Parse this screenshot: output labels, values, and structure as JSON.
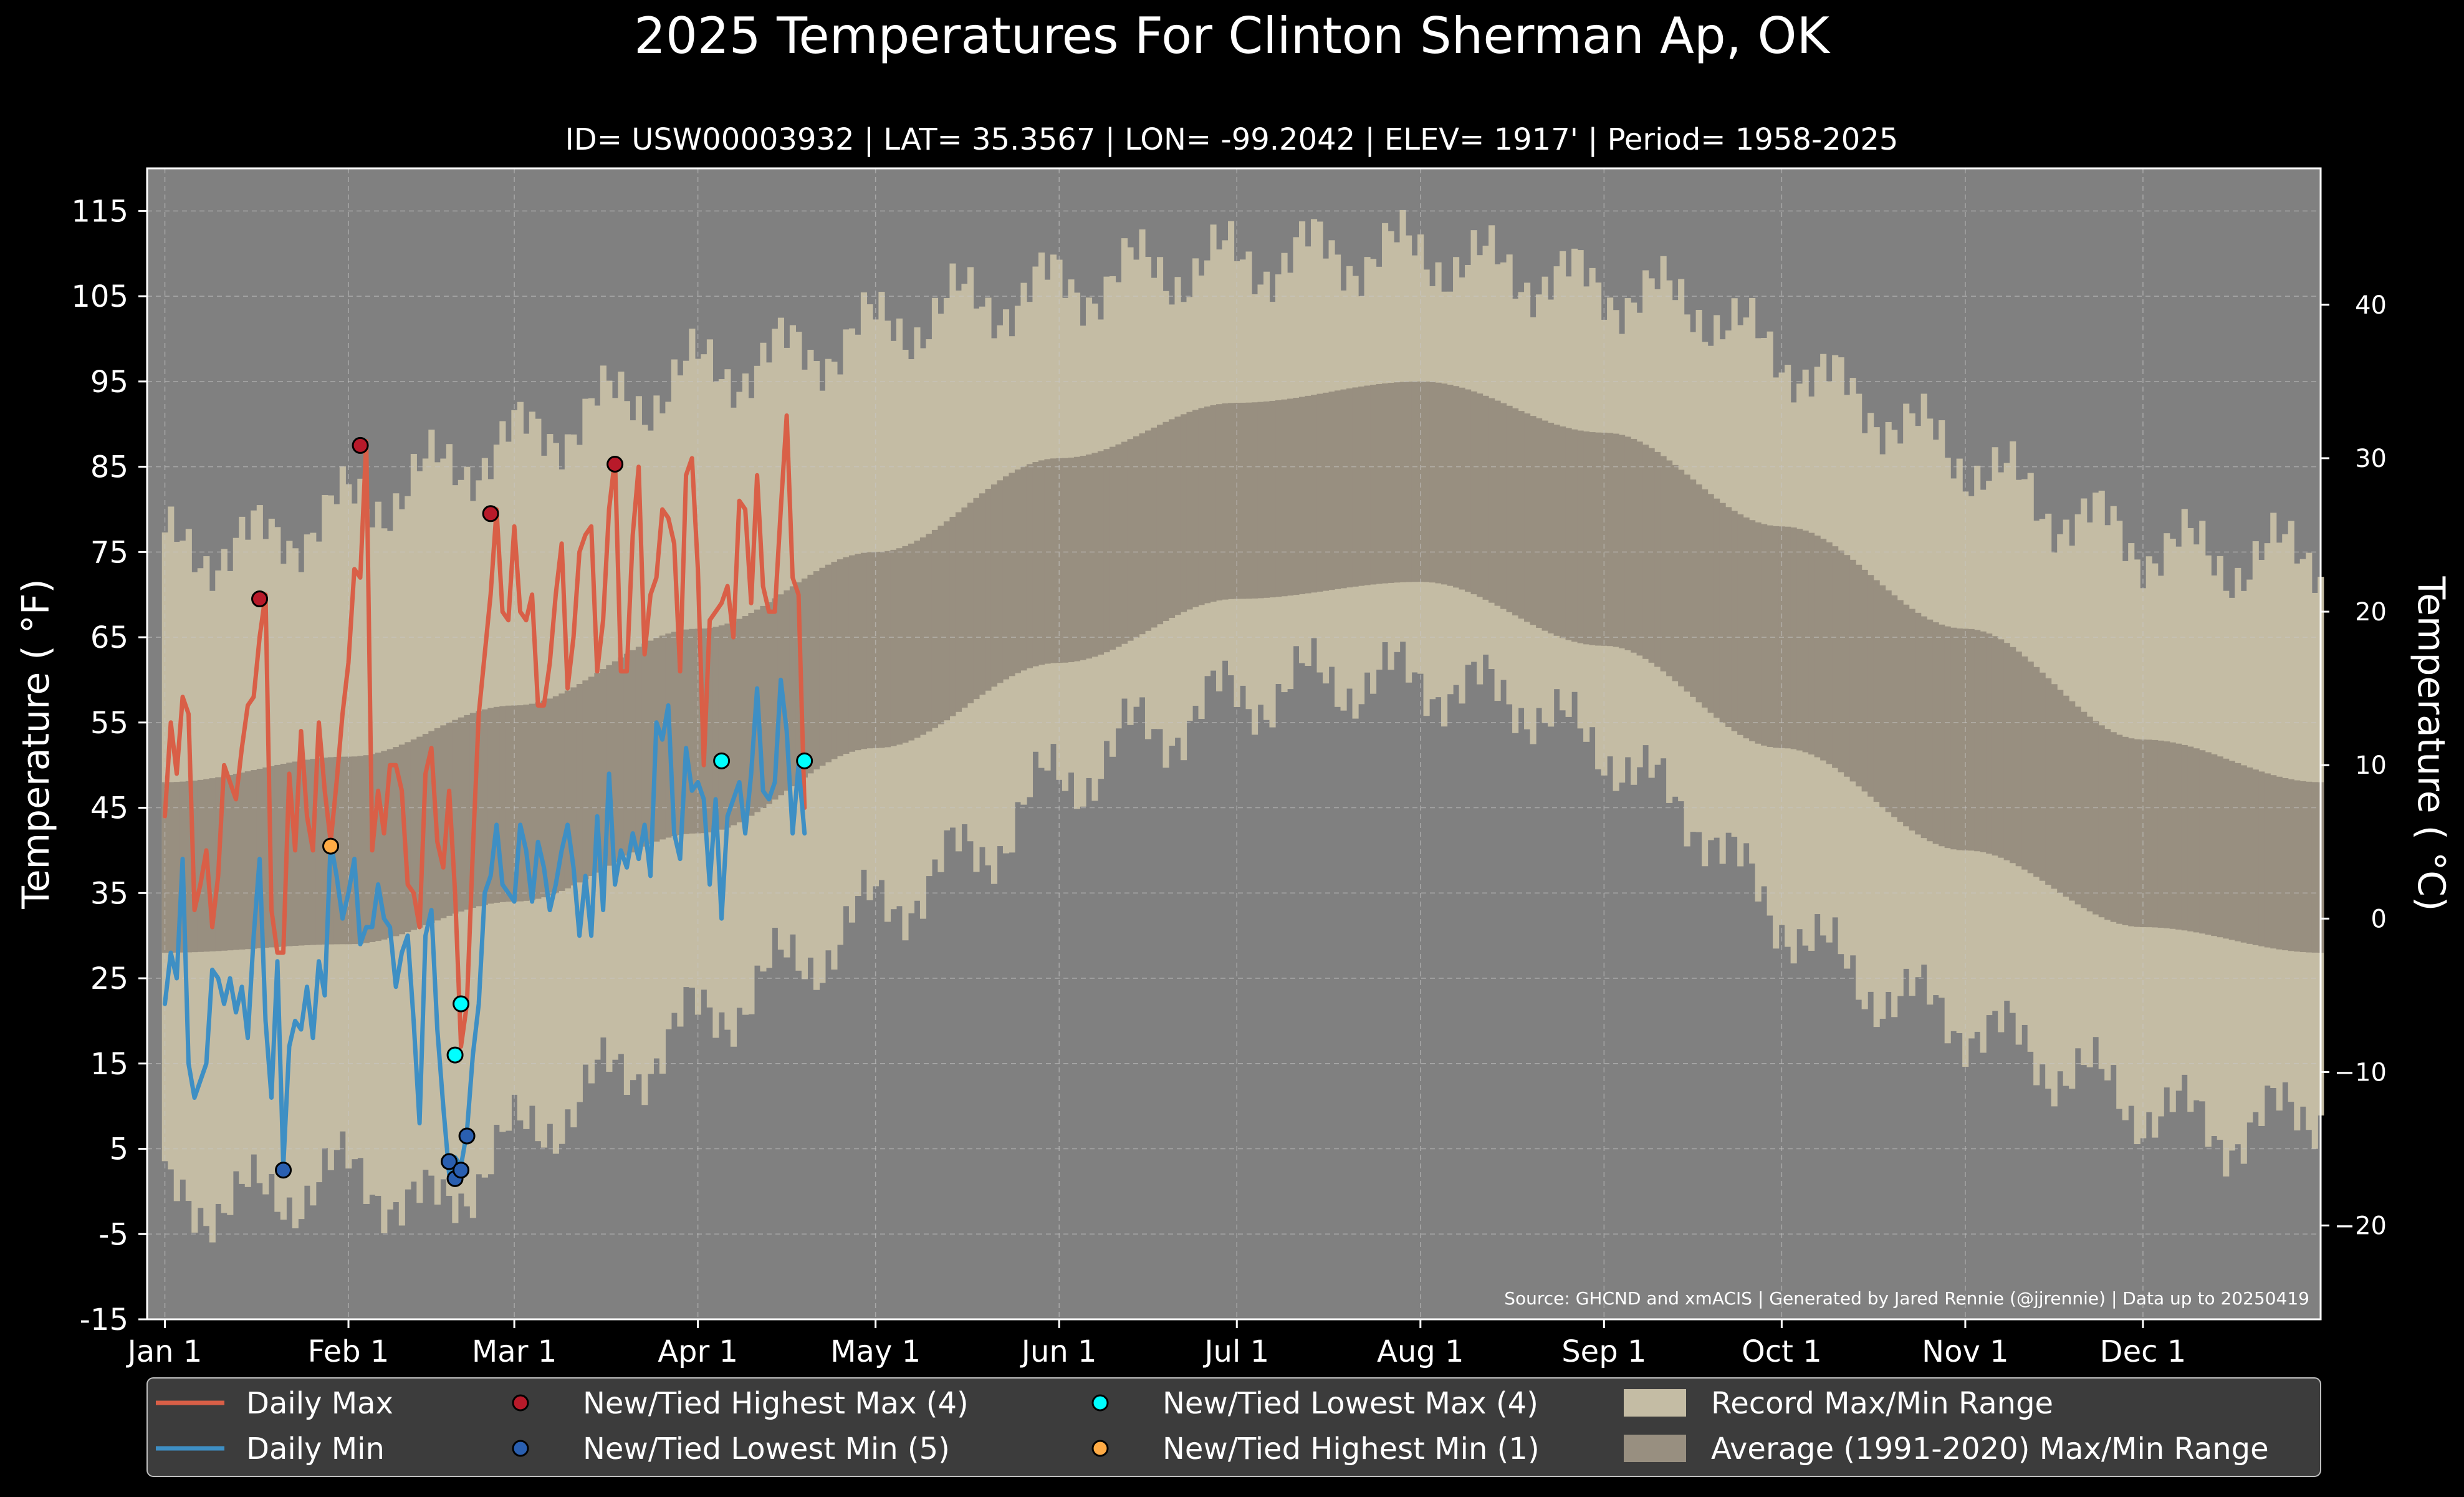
{
  "chart_data": {
    "type": "line",
    "title": "2025 Temperatures For Clinton Sherman Ap, OK",
    "subtitle": "ID= USW00003932 | LAT= 35.3567 | LON= -99.2042 | ELEV= 1917' | Period= 1958-2025",
    "ylabel": "Temperature ($^\\circ$F)",
    "ylabel_display": "Temperature ( °F)",
    "y2label_display": "Temperature ( °C)",
    "source_note": "Source: GHCND and xmACIS | Generated by Jared Rennie (@jjrennie) | Data up to 20250419",
    "ylim": [
      -15,
      120
    ],
    "y_ticks": [
      115,
      105,
      95,
      85,
      75,
      65,
      55,
      45,
      35,
      25,
      15,
      5,
      -5,
      -15
    ],
    "y2_ticks": [
      40,
      30,
      20,
      10,
      0,
      -10,
      -20
    ],
    "y2_tick_labels": [
      "40",
      "30",
      "20",
      "10",
      "0",
      "−10",
      "−20"
    ],
    "x_range_day": [
      -3,
      364
    ],
    "month_ticks": [
      {
        "label": "Jan 1",
        "day": 0
      },
      {
        "label": "Feb 1",
        "day": 31
      },
      {
        "label": "Mar 1",
        "day": 59
      },
      {
        "label": "Apr 1",
        "day": 90
      },
      {
        "label": "May 1",
        "day": 120
      },
      {
        "label": "Jun 1",
        "day": 151
      },
      {
        "label": "Jul 1",
        "day": 181
      },
      {
        "label": "Aug 1",
        "day": 212
      },
      {
        "label": "Sep 1",
        "day": 243
      },
      {
        "label": "Oct 1",
        "day": 273
      },
      {
        "label": "Nov 1",
        "day": 304
      },
      {
        "label": "Dec 1",
        "day": 334
      }
    ],
    "colors": {
      "background": "#000000",
      "plot_background": "#808080",
      "record_range": "#c4bca4",
      "average_range": "#988f80",
      "daily_max": "#d95f47",
      "daily_min": "#3e8fc4",
      "new_highest_max": "#b81a2a",
      "new_lowest_min": "#2a5fb0",
      "new_lowest_max": "#00ffff",
      "new_highest_min": "#ffab45",
      "grid": "#c8c8c8",
      "legend_background": "#3c3c3c"
    },
    "record_max_anchors": [
      [
        0,
        75
      ],
      [
        15,
        76
      ],
      [
        31,
        80
      ],
      [
        45,
        84
      ],
      [
        59,
        88
      ],
      [
        75,
        92
      ],
      [
        90,
        96
      ],
      [
        105,
        98
      ],
      [
        120,
        101
      ],
      [
        135,
        104
      ],
      [
        151,
        106
      ],
      [
        166,
        108
      ],
      [
        181,
        109
      ],
      [
        196,
        110
      ],
      [
        212,
        110
      ],
      [
        227,
        108
      ],
      [
        243,
        106
      ],
      [
        258,
        104
      ],
      [
        273,
        98
      ],
      [
        288,
        92
      ],
      [
        304,
        86
      ],
      [
        319,
        80
      ],
      [
        334,
        76
      ],
      [
        349,
        74
      ],
      [
        364,
        75
      ]
    ],
    "record_min_anchors": [
      [
        0,
        -1
      ],
      [
        15,
        -1
      ],
      [
        31,
        2
      ],
      [
        45,
        -2
      ],
      [
        59,
        6
      ],
      [
        75,
        13
      ],
      [
        90,
        20
      ],
      [
        105,
        26
      ],
      [
        120,
        33
      ],
      [
        135,
        39
      ],
      [
        151,
        48
      ],
      [
        166,
        54
      ],
      [
        181,
        58
      ],
      [
        196,
        60
      ],
      [
        212,
        60
      ],
      [
        227,
        58
      ],
      [
        243,
        52
      ],
      [
        258,
        44
      ],
      [
        273,
        32
      ],
      [
        288,
        24
      ],
      [
        304,
        20
      ],
      [
        319,
        15
      ],
      [
        334,
        10
      ],
      [
        349,
        7
      ],
      [
        364,
        10
      ]
    ],
    "average_max_anchors": [
      [
        0,
        48
      ],
      [
        31,
        51
      ],
      [
        59,
        57
      ],
      [
        90,
        66
      ],
      [
        120,
        75
      ],
      [
        151,
        86
      ],
      [
        181,
        92.5
      ],
      [
        212,
        95
      ],
      [
        243,
        89
      ],
      [
        273,
        78
      ],
      [
        304,
        66
      ],
      [
        334,
        53
      ],
      [
        364,
        48
      ]
    ],
    "average_min_anchors": [
      [
        0,
        28
      ],
      [
        31,
        29
      ],
      [
        59,
        34
      ],
      [
        90,
        42
      ],
      [
        120,
        52
      ],
      [
        151,
        62
      ],
      [
        181,
        69.5
      ],
      [
        212,
        71.5
      ],
      [
        243,
        64
      ],
      [
        273,
        52
      ],
      [
        304,
        40
      ],
      [
        334,
        31
      ],
      [
        364,
        28
      ]
    ],
    "series": [
      {
        "name": "Daily Max",
        "x": [
          0,
          1,
          2,
          3,
          4,
          5,
          6,
          7,
          8,
          9,
          10,
          11,
          12,
          13,
          14,
          15,
          16,
          17,
          18,
          19,
          20,
          21,
          22,
          23,
          24,
          25,
          26,
          27,
          28,
          29,
          30,
          31,
          32,
          33,
          34,
          35,
          36,
          37,
          38,
          39,
          40,
          41,
          42,
          43,
          44,
          45,
          46,
          47,
          48,
          49,
          50,
          51,
          52,
          53,
          54,
          55,
          56,
          57,
          58,
          59,
          60,
          61,
          62,
          63,
          64,
          65,
          66,
          67,
          68,
          69,
          70,
          71,
          72,
          73,
          74,
          75,
          76,
          77,
          78,
          79,
          80,
          81,
          82,
          83,
          84,
          85,
          86,
          87,
          88,
          89,
          90,
          91,
          92,
          93,
          94,
          95,
          96,
          97,
          98,
          99,
          100,
          101,
          102,
          103,
          104,
          105,
          106,
          107,
          108
        ],
        "values": [
          44,
          55,
          49,
          58,
          56,
          33,
          36,
          40,
          31,
          37,
          50,
          48,
          46,
          52,
          57,
          58,
          65,
          70,
          33,
          28,
          28,
          49,
          40,
          54,
          44,
          40,
          55,
          47,
          41,
          48,
          56,
          62,
          73,
          72,
          88,
          40,
          47,
          42,
          50,
          50,
          47,
          36,
          35,
          31,
          49,
          52,
          41,
          38,
          47,
          35,
          17,
          22,
          40,
          56,
          63,
          70,
          80,
          68,
          67,
          78,
          68,
          67,
          70,
          57,
          57,
          62,
          70,
          76,
          59,
          65,
          75,
          77,
          78,
          61,
          67,
          80,
          86,
          61,
          61,
          77,
          85,
          63,
          70,
          72,
          80,
          79,
          76,
          61,
          84,
          86,
          73,
          50,
          67,
          68,
          69,
          71,
          65,
          81,
          80,
          69,
          84,
          71,
          68,
          68,
          80,
          91,
          72,
          70,
          45
        ]
      },
      {
        "name": "Daily Min",
        "x": [
          0,
          1,
          2,
          3,
          4,
          5,
          6,
          7,
          8,
          9,
          10,
          11,
          12,
          13,
          14,
          15,
          16,
          17,
          18,
          19,
          20,
          21,
          22,
          23,
          24,
          25,
          26,
          27,
          28,
          29,
          30,
          31,
          32,
          33,
          34,
          35,
          36,
          37,
          38,
          39,
          40,
          41,
          42,
          43,
          44,
          45,
          46,
          47,
          48,
          49,
          50,
          51,
          52,
          53,
          54,
          55,
          56,
          57,
          58,
          59,
          60,
          61,
          62,
          63,
          64,
          65,
          66,
          67,
          68,
          69,
          70,
          71,
          72,
          73,
          74,
          75,
          76,
          77,
          78,
          79,
          80,
          81,
          82,
          83,
          84,
          85,
          86,
          87,
          88,
          89,
          90,
          91,
          92,
          93,
          94,
          95,
          96,
          97,
          98,
          99,
          100,
          101,
          102,
          103,
          104,
          105,
          106,
          107,
          108
        ],
        "values": [
          22,
          28,
          25,
          39,
          15,
          11,
          13,
          15,
          26,
          25,
          22,
          25,
          21,
          24,
          18,
          30,
          39,
          20,
          11,
          27,
          3,
          17,
          20,
          19,
          24,
          18,
          27,
          23,
          41,
          37,
          32,
          35,
          39,
          29,
          31,
          31,
          36,
          32,
          31,
          24,
          28,
          30,
          20,
          8,
          30,
          33,
          19,
          10,
          2,
          4,
          3,
          7,
          16,
          22,
          35,
          37,
          43,
          36,
          35,
          34,
          43,
          40,
          34,
          41,
          38,
          33,
          36,
          40,
          43,
          38,
          30,
          37,
          30,
          44,
          33,
          49,
          36,
          40,
          38,
          42,
          39,
          43,
          37,
          55,
          53,
          57,
          42,
          39,
          52,
          47,
          48,
          46,
          36,
          46,
          32,
          44,
          46,
          48,
          42,
          49,
          59,
          47,
          46,
          48,
          60,
          54,
          42,
          50,
          42
        ]
      }
    ],
    "record_markers": [
      {
        "name": "New/Tied Highest Max",
        "color_key": "new_highest_max",
        "points": [
          [
            16,
            69.5
          ],
          [
            33,
            87.5
          ],
          [
            55,
            79.5
          ],
          [
            76,
            85.3
          ]
        ]
      },
      {
        "name": "New/Tied Lowest Min",
        "color_key": "new_lowest_min",
        "points": [
          [
            20,
            2.5
          ],
          [
            48,
            3.5
          ],
          [
            49,
            1.5
          ],
          [
            50,
            2.5
          ],
          [
            51,
            6.5
          ]
        ]
      },
      {
        "name": "New/Tied Lowest Max",
        "color_key": "new_lowest_max",
        "points": [
          [
            49,
            16
          ],
          [
            50,
            22
          ],
          [
            94,
            50.5
          ],
          [
            108,
            50.5
          ]
        ]
      },
      {
        "name": "New/Tied Highest Min",
        "color_key": "new_highest_min",
        "points": [
          [
            28,
            40.5
          ]
        ]
      }
    ],
    "legend": {
      "placement": "below plot",
      "items": [
        {
          "label": "Daily Max",
          "kind": "line",
          "color_key": "daily_max"
        },
        {
          "label": "Daily Min",
          "kind": "line",
          "color_key": "daily_min"
        },
        {
          "label": "New/Tied Highest Max (4)",
          "kind": "marker",
          "color_key": "new_highest_max"
        },
        {
          "label": "New/Tied Lowest Min (5)",
          "kind": "marker",
          "color_key": "new_lowest_min"
        },
        {
          "label": "New/Tied Lowest Max (4)",
          "kind": "marker",
          "color_key": "new_lowest_max"
        },
        {
          "label": "New/Tied Highest Min (1)",
          "kind": "marker",
          "color_key": "new_highest_min"
        },
        {
          "label": "Record Max/Min Range",
          "kind": "patch",
          "color_key": "record_range"
        },
        {
          "label": "Average (1991-2020) Max/Min Range",
          "kind": "patch",
          "color_key": "average_range"
        }
      ]
    },
    "grid": true
  }
}
